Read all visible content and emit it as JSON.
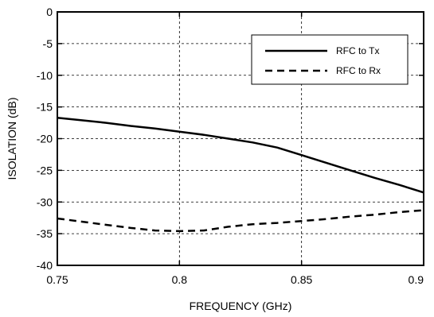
{
  "chart_data": {
    "type": "line",
    "xlabel": "FREQUENCY (GHz)",
    "ylabel": "ISOLATION (dB)",
    "xlim": [
      0.75,
      0.9
    ],
    "ylim": [
      -40,
      0
    ],
    "xticks": [
      0.75,
      0.8,
      0.85,
      0.9
    ],
    "xtick_labels": [
      "0.75",
      "0.8",
      "0.85",
      "0.9"
    ],
    "yticks": [
      0,
      -5,
      -10,
      -15,
      -20,
      -25,
      -30,
      -35,
      -40
    ],
    "ytick_labels": [
      "0",
      "-5",
      "-10",
      "-15",
      "-20",
      "-25",
      "-30",
      "-35",
      "-40"
    ],
    "grid": true,
    "legend_position": "top-right",
    "series": [
      {
        "name": "RFC to Tx",
        "style": "solid",
        "x": [
          0.75,
          0.76,
          0.77,
          0.78,
          0.79,
          0.8,
          0.81,
          0.82,
          0.83,
          0.84,
          0.85,
          0.86,
          0.87,
          0.88,
          0.89,
          0.9
        ],
        "y": [
          -16.7,
          -17.1,
          -17.5,
          -18.0,
          -18.4,
          -18.9,
          -19.4,
          -20.0,
          -20.6,
          -21.4,
          -22.6,
          -23.8,
          -25.0,
          -26.2,
          -27.3,
          -28.5
        ]
      },
      {
        "name": "RFC to Rx",
        "style": "dashed",
        "x": [
          0.75,
          0.76,
          0.77,
          0.78,
          0.79,
          0.8,
          0.81,
          0.82,
          0.83,
          0.84,
          0.85,
          0.86,
          0.87,
          0.88,
          0.89,
          0.9
        ],
        "y": [
          -32.6,
          -33.1,
          -33.6,
          -34.1,
          -34.5,
          -34.6,
          -34.5,
          -33.9,
          -33.5,
          -33.3,
          -33.0,
          -32.7,
          -32.3,
          -32.0,
          -31.6,
          -31.3
        ]
      }
    ]
  }
}
